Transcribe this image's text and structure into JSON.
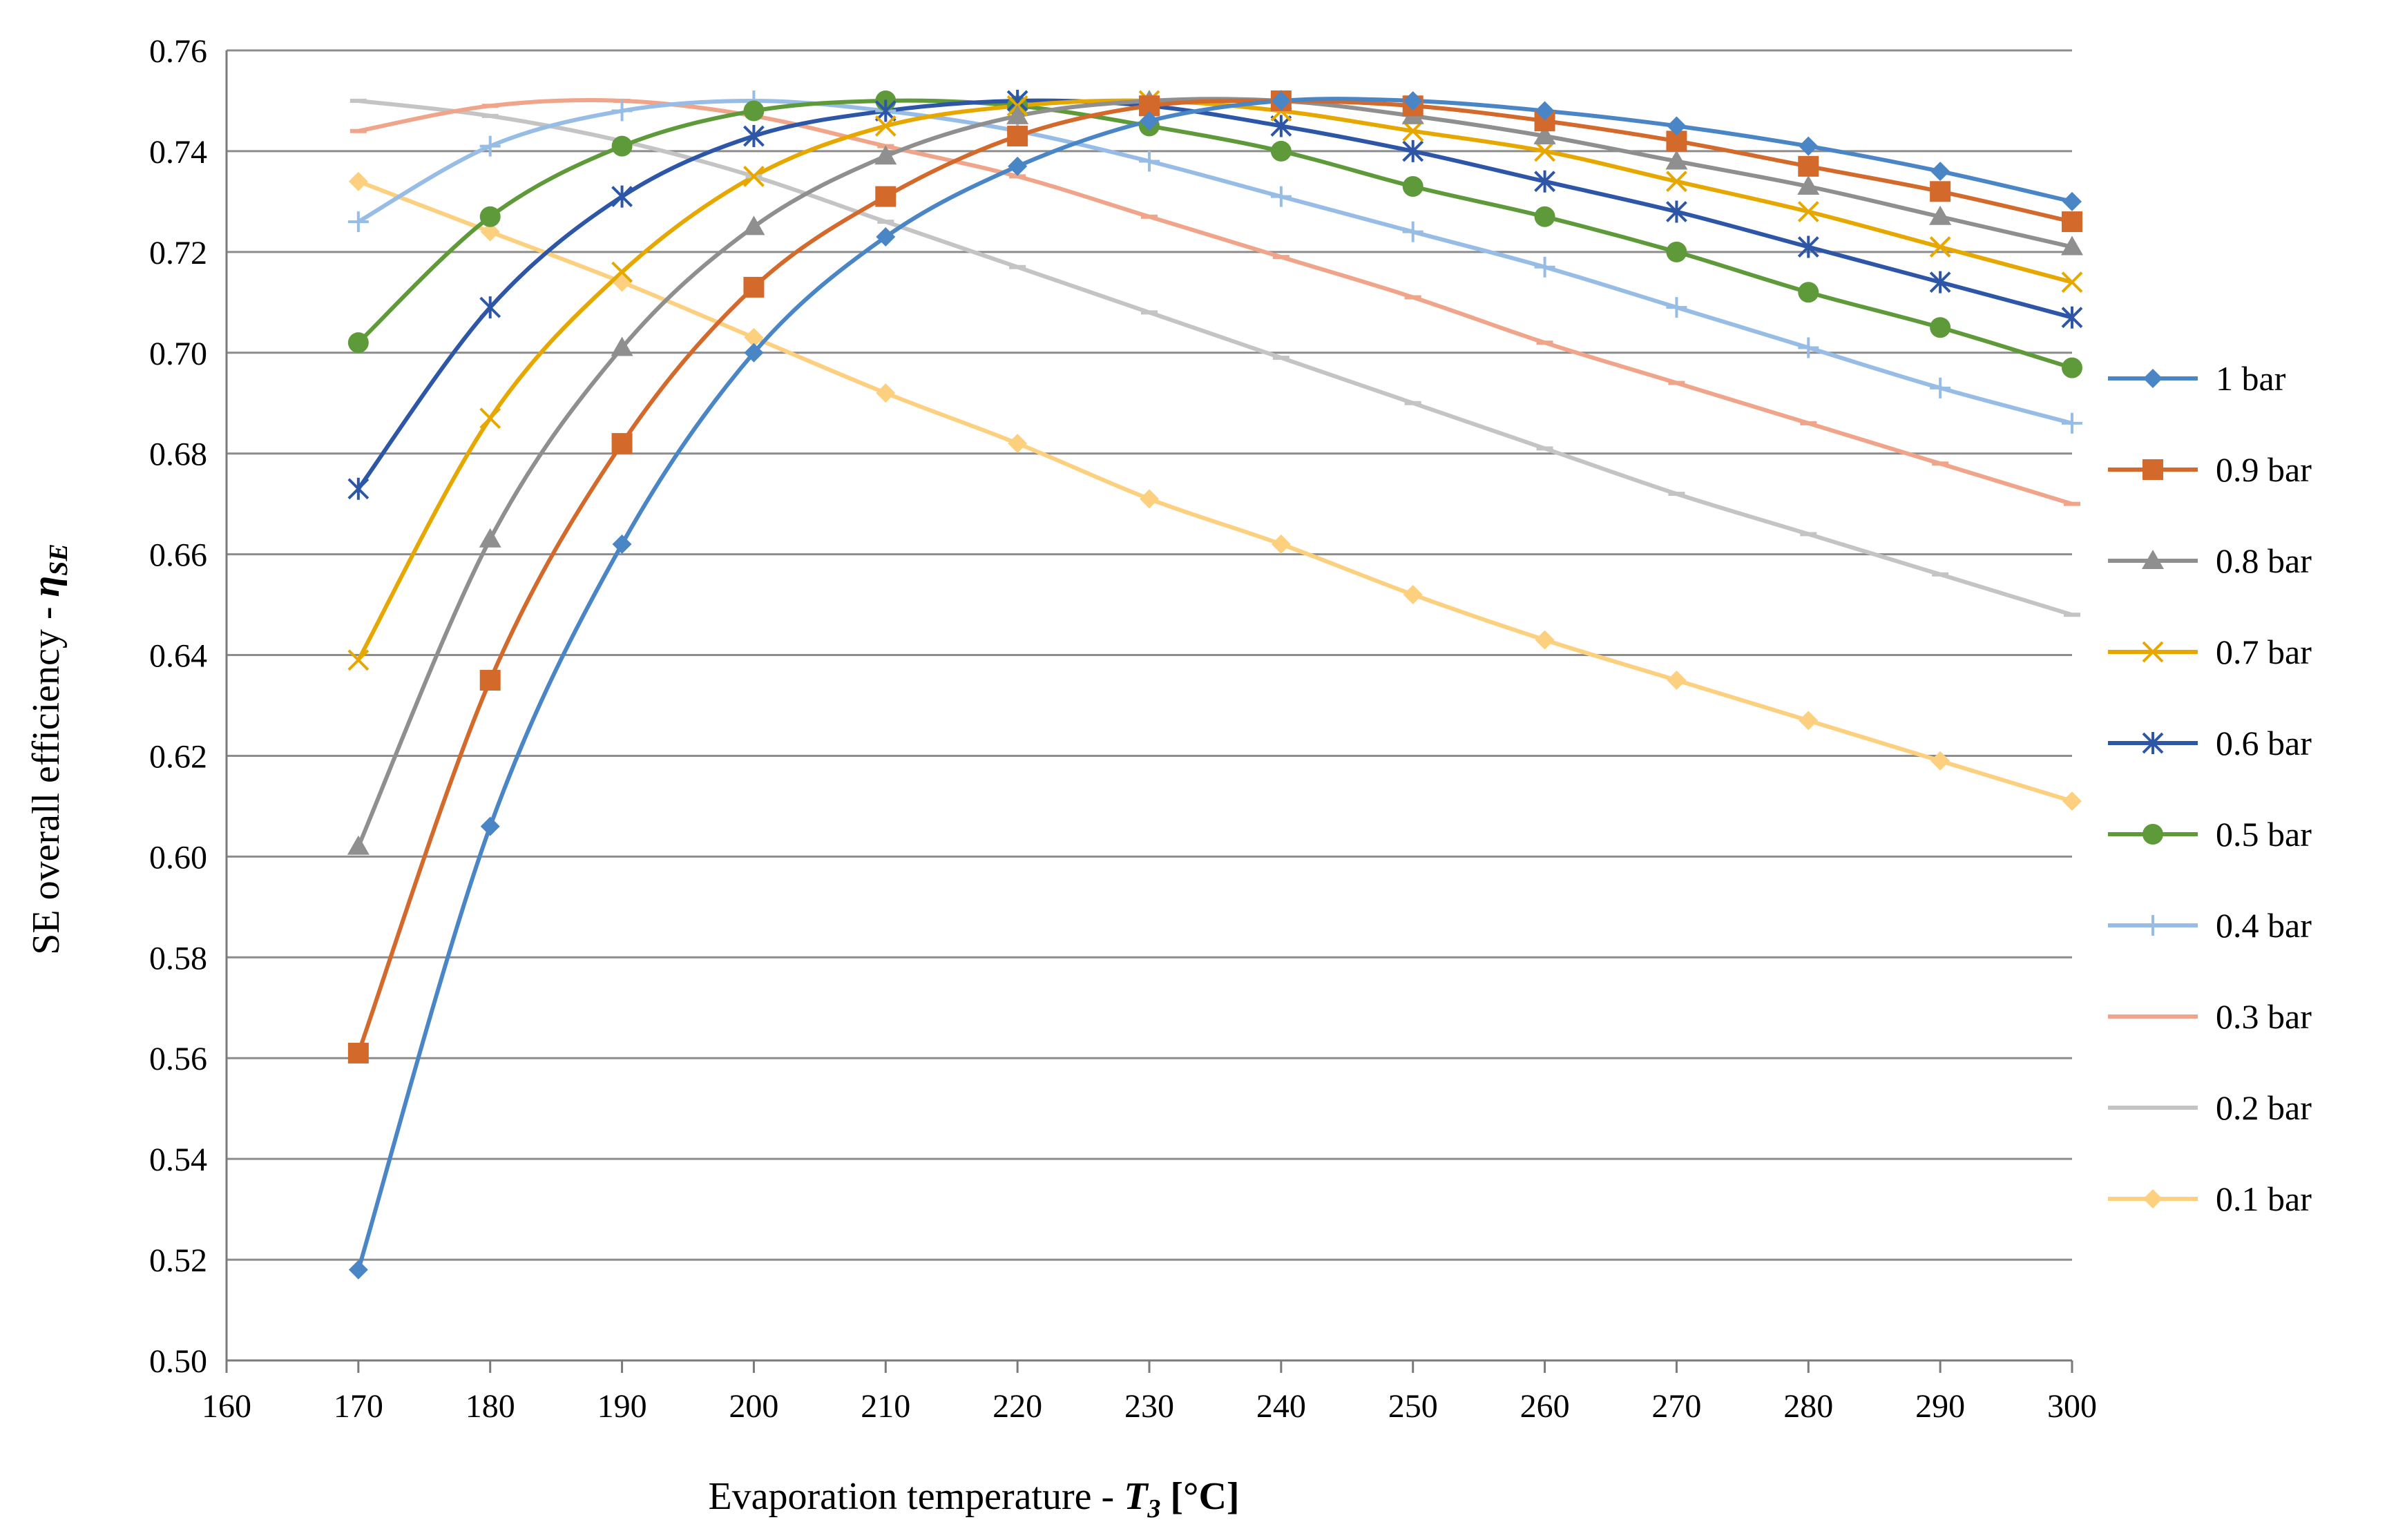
{
  "chart_data": {
    "type": "line",
    "title": "",
    "xlabel": {
      "prefix": "Evaporation temperature - ",
      "symbol": "T",
      "subscript": "3",
      "unit": " [°C]"
    },
    "ylabel": {
      "prefix": "SE overall efficiency - ",
      "symbol": "η",
      "subscript": "SE"
    },
    "xlim": [
      160,
      300
    ],
    "ylim": [
      0.5,
      0.76
    ],
    "x_ticks": [
      160,
      170,
      180,
      190,
      200,
      210,
      220,
      230,
      240,
      250,
      260,
      270,
      280,
      290,
      300
    ],
    "x_tick_labels": [
      "160",
      "170",
      "180",
      "190",
      "200",
      "210",
      "220",
      "230",
      "240",
      "250",
      "260",
      "270",
      "280",
      "290",
      "300"
    ],
    "y_ticks": [
      0.5,
      0.52,
      0.54,
      0.56,
      0.58,
      0.6,
      0.62,
      0.64,
      0.66,
      0.68,
      0.7,
      0.72,
      0.74,
      0.76
    ],
    "y_tick_labels": [
      "0.50",
      "0.52",
      "0.54",
      "0.56",
      "0.58",
      "0.60",
      "0.62",
      "0.64",
      "0.66",
      "0.68",
      "0.70",
      "0.72",
      "0.74",
      "0.76"
    ],
    "grid": "horizontal",
    "legend_position": "right",
    "x": [
      170,
      180,
      190,
      200,
      210,
      220,
      230,
      240,
      250,
      260,
      270,
      280,
      290,
      300
    ],
    "series": [
      {
        "name": "1 bar",
        "color": "#4a86c5",
        "marker": "diamond",
        "values": [
          0.518,
          0.606,
          0.662,
          0.7,
          0.723,
          0.737,
          0.746,
          0.75,
          0.75,
          0.748,
          0.745,
          0.741,
          0.736,
          0.73
        ]
      },
      {
        "name": "0.9 bar",
        "color": "#d3692b",
        "marker": "square",
        "values": [
          0.561,
          0.635,
          0.682,
          0.713,
          0.731,
          0.743,
          0.749,
          0.75,
          0.749,
          0.746,
          0.742,
          0.737,
          0.732,
          0.726
        ]
      },
      {
        "name": "0.8 bar",
        "color": "#8f8f8f",
        "marker": "triangle",
        "values": [
          0.602,
          0.663,
          0.701,
          0.725,
          0.739,
          0.747,
          0.75,
          0.75,
          0.747,
          0.743,
          0.738,
          0.733,
          0.727,
          0.721
        ]
      },
      {
        "name": "0.7 bar",
        "color": "#e6a800",
        "marker": "x",
        "values": [
          0.639,
          0.687,
          0.716,
          0.735,
          0.745,
          0.749,
          0.75,
          0.748,
          0.744,
          0.74,
          0.734,
          0.728,
          0.721,
          0.714
        ]
      },
      {
        "name": "0.6 bar",
        "color": "#2e56a7",
        "marker": "asterisk",
        "values": [
          0.673,
          0.709,
          0.731,
          0.743,
          0.748,
          0.75,
          0.749,
          0.745,
          0.74,
          0.734,
          0.728,
          0.721,
          0.714,
          0.707
        ]
      },
      {
        "name": "0.5 bar",
        "color": "#5f9a3a",
        "marker": "circle",
        "values": [
          0.702,
          0.727,
          0.741,
          0.748,
          0.75,
          0.749,
          0.745,
          0.74,
          0.733,
          0.727,
          0.72,
          0.712,
          0.705,
          0.697
        ]
      },
      {
        "name": "0.4 bar",
        "color": "#97bde6",
        "marker": "plus",
        "values": [
          0.726,
          0.741,
          0.748,
          0.75,
          0.748,
          0.744,
          0.738,
          0.731,
          0.724,
          0.717,
          0.709,
          0.701,
          0.693,
          0.686
        ]
      },
      {
        "name": "0.3 bar",
        "color": "#f0a48a",
        "marker": "dash",
        "values": [
          0.744,
          0.749,
          0.75,
          0.747,
          0.741,
          0.735,
          0.727,
          0.719,
          0.711,
          0.702,
          0.694,
          0.686,
          0.678,
          0.67
        ]
      },
      {
        "name": "0.2 bar",
        "color": "#c4c4c4",
        "marker": "dash",
        "values": [
          0.75,
          0.747,
          0.742,
          0.735,
          0.726,
          0.717,
          0.708,
          0.699,
          0.69,
          0.681,
          0.672,
          0.664,
          0.656,
          0.648
        ]
      },
      {
        "name": "0.1 bar",
        "color": "#fdd07f",
        "marker": "diamond",
        "values": [
          0.734,
          0.724,
          0.714,
          0.703,
          0.692,
          0.682,
          0.671,
          0.662,
          0.652,
          0.643,
          0.635,
          0.627,
          0.619,
          0.611
        ]
      }
    ]
  }
}
